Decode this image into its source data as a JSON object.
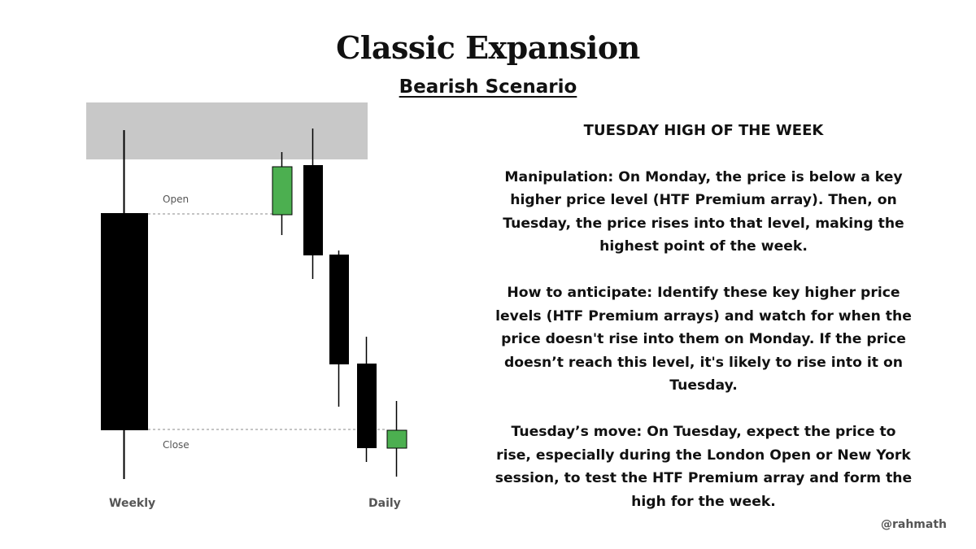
{
  "title": "Classic Expansion",
  "subtitle": "Bearish Scenario",
  "diagram": {
    "premium_zone_color": "#c8c8c8",
    "bearish_color": "#000000",
    "bullish_color": "#4caf50",
    "labels": {
      "open": "Open",
      "close": "Close",
      "weekly": "Weekly",
      "daily": "Daily"
    }
  },
  "text": {
    "heading": "TUESDAY HIGH OF THE WEEK",
    "paragraphs": [
      "Manipulation:  On Monday, the price is below a key higher price level (HTF Premium array). Then, on Tuesday, the price rises into that level, making the highest point of the week.",
      "How to anticipate:  Identify these key higher price levels (HTF Premium arrays) and watch for when the price doesn't rise into them on Monday. If the price doesn’t reach this level, it's likely to rise into it on Tuesday.",
      "Tuesday’s move:  On Tuesday, expect the price to rise, especially during the London Open or New York session, to test the HTF Premium array and form the high for the week."
    ]
  },
  "handle": "@rahmath"
}
